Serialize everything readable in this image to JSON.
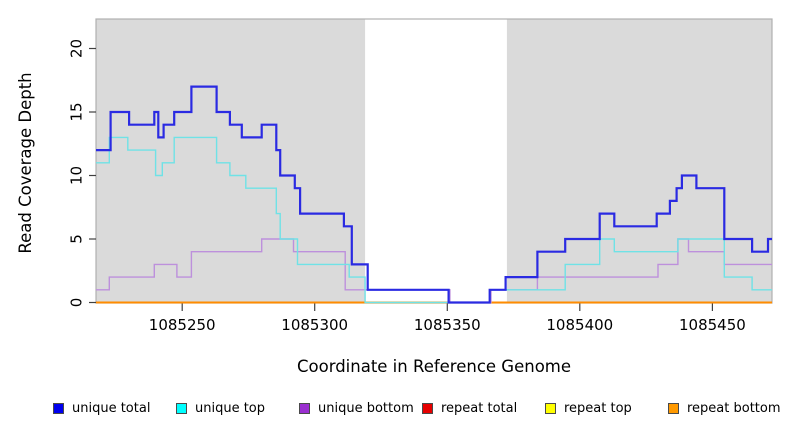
{
  "chart_data": {
    "type": "line",
    "subtype": "step-coverage-plot",
    "title": "",
    "xlabel": "Coordinate in Reference Genome",
    "ylabel": "Read Coverage Depth",
    "x_ticks": [
      1085250,
      1085300,
      1085350,
      1085400,
      1085450
    ],
    "y_ticks": [
      0,
      5,
      10,
      15,
      20
    ],
    "xlim": [
      1085217.5,
      1085472.5
    ],
    "ylim": [
      0,
      22.3
    ],
    "grid": false,
    "legend_position": "bottom",
    "panel_color": "#dadada",
    "panel_border_color": "#b0b0b0",
    "gap_color": "#ffffff",
    "shaded_regions": [
      [
        1085217.5,
        1085319.0
      ],
      [
        1085372.5,
        1085472.5
      ]
    ],
    "series": [
      {
        "name": "unique total",
        "color": "#2a2ae2",
        "legend_color": "#0000ee",
        "width": 2.2,
        "z": 6,
        "steps": [
          [
            1085217.5,
            12
          ],
          [
            1085223,
            15
          ],
          [
            1085230,
            14
          ],
          [
            1085239.5,
            15
          ],
          [
            1085241,
            13
          ],
          [
            1085243,
            14
          ],
          [
            1085247,
            15
          ],
          [
            1085253.5,
            17
          ],
          [
            1085263,
            15
          ],
          [
            1085268,
            14
          ],
          [
            1085272.5,
            13
          ],
          [
            1085280,
            14
          ],
          [
            1085285.5,
            12
          ],
          [
            1085287,
            10
          ],
          [
            1085292.5,
            9
          ],
          [
            1085294.5,
            7
          ],
          [
            1085311,
            6
          ],
          [
            1085314,
            3
          ],
          [
            1085320,
            1
          ],
          [
            1085350.5,
            0
          ],
          [
            1085366,
            1
          ],
          [
            1085372,
            2
          ],
          [
            1085384,
            4
          ],
          [
            1085394.5,
            5
          ],
          [
            1085407.5,
            7
          ],
          [
            1085413,
            6
          ],
          [
            1085429,
            7
          ],
          [
            1085434,
            8
          ],
          [
            1085436.5,
            9
          ],
          [
            1085438.5,
            10
          ],
          [
            1085444,
            9
          ],
          [
            1085454.5,
            5
          ],
          [
            1085465,
            4
          ],
          [
            1085471,
            5
          ]
        ]
      },
      {
        "name": "unique top",
        "color": "#6fe2e6",
        "legend_color": "#00ffff",
        "width": 1.4,
        "z": 5,
        "steps": [
          [
            1085217.5,
            11
          ],
          [
            1085222.5,
            13
          ],
          [
            1085229.5,
            12
          ],
          [
            1085240,
            10
          ],
          [
            1085242.5,
            11
          ],
          [
            1085247,
            13
          ],
          [
            1085263,
            11
          ],
          [
            1085268,
            10
          ],
          [
            1085274,
            9
          ],
          [
            1085285.5,
            7
          ],
          [
            1085287,
            5
          ],
          [
            1085293.5,
            3
          ],
          [
            1085313,
            2
          ],
          [
            1085319,
            0
          ],
          [
            1085366,
            1
          ],
          [
            1085394.5,
            3
          ],
          [
            1085407.5,
            5
          ],
          [
            1085413,
            4
          ],
          [
            1085437,
            5
          ],
          [
            1085454.5,
            2
          ],
          [
            1085465,
            1
          ]
        ]
      },
      {
        "name": "unique bottom",
        "color": "#bd90dc",
        "legend_color": "#9a2fd0",
        "width": 1.4,
        "z": 4,
        "steps": [
          [
            1085217.5,
            1
          ],
          [
            1085222.5,
            2
          ],
          [
            1085239.5,
            3
          ],
          [
            1085248,
            2
          ],
          [
            1085253.5,
            4
          ],
          [
            1085280,
            5
          ],
          [
            1085292,
            4
          ],
          [
            1085311.5,
            1
          ],
          [
            1085351,
            0
          ],
          [
            1085366.5,
            1
          ],
          [
            1085384,
            2
          ],
          [
            1085429.5,
            3
          ],
          [
            1085437,
            5
          ],
          [
            1085441,
            4
          ],
          [
            1085454.5,
            3
          ]
        ]
      },
      {
        "name": "repeat total",
        "color": "#dd0000",
        "legend_color": "#e60000",
        "width": 1.5,
        "z": 1,
        "steps": [
          [
            1085217.5,
            0
          ]
        ]
      },
      {
        "name": "repeat top",
        "color": "#ffff00",
        "legend_color": "#ffff00",
        "width": 1.5,
        "z": 2,
        "steps": [
          [
            1085217.5,
            0
          ]
        ]
      },
      {
        "name": "repeat bottom",
        "color": "#ff8c00",
        "legend_color": "#ff9900",
        "width": 2,
        "z": 3,
        "steps": [
          [
            1085217.5,
            0
          ]
        ]
      }
    ]
  },
  "legend": {
    "items": [
      {
        "label": "unique total"
      },
      {
        "label": "unique top"
      },
      {
        "label": "unique bottom"
      },
      {
        "label": "repeat total"
      },
      {
        "label": "repeat top"
      },
      {
        "label": "repeat bottom"
      }
    ]
  }
}
